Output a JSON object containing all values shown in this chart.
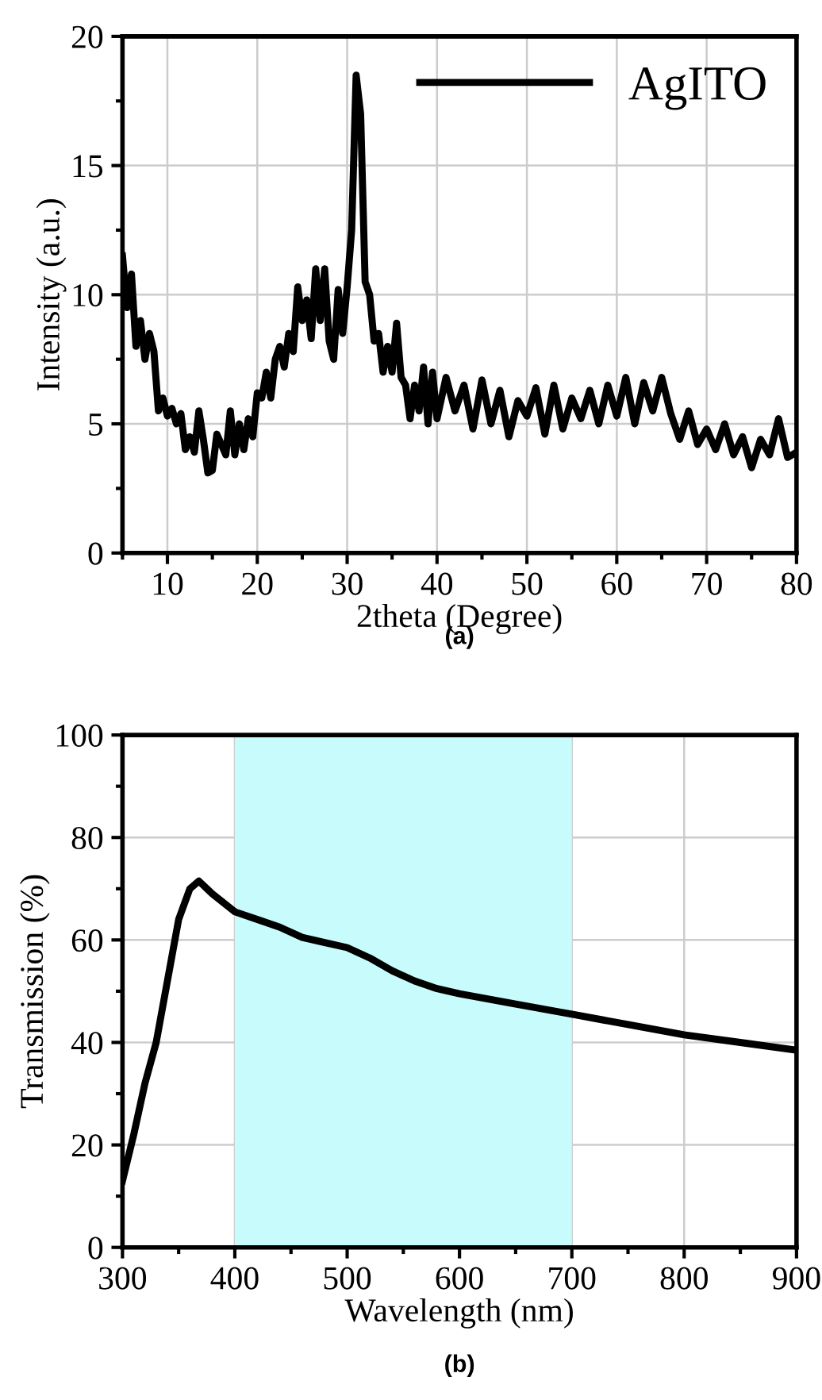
{
  "chart_data": [
    {
      "type": "line",
      "xlabel": "2theta (Degree)",
      "ylabel": "Intensity (a.u.)",
      "annotations": [
        "(a)"
      ],
      "xlim": [
        5,
        80
      ],
      "ylim": [
        0,
        20
      ],
      "xticks": [
        10,
        20,
        30,
        40,
        50,
        60,
        70,
        80
      ],
      "yticks": [
        0,
        5,
        10,
        15,
        20
      ],
      "grid": true,
      "legend": "top right",
      "series": [
        {
          "name": "AgITO",
          "color": "#000000",
          "x": [
            5,
            5.5,
            6,
            6.5,
            7,
            7.5,
            8,
            8.5,
            9,
            9.5,
            10,
            10.5,
            11,
            11.5,
            12,
            12.5,
            13,
            13.5,
            14,
            14.5,
            15,
            15.5,
            16,
            16.5,
            17,
            17.5,
            18,
            18.5,
            19,
            19.5,
            20,
            20.5,
            21,
            21.5,
            22,
            22.5,
            23,
            23.5,
            24,
            24.5,
            25,
            25.5,
            26,
            26.5,
            27,
            27.5,
            28,
            28.5,
            29,
            29.5,
            30,
            30.5,
            31,
            31.5,
            32,
            32.5,
            33,
            33.5,
            34,
            34.5,
            35,
            35.5,
            36,
            36.5,
            37,
            37.5,
            38,
            38.5,
            39,
            39.5,
            40,
            41,
            42,
            43,
            44,
            45,
            46,
            47,
            48,
            49,
            50,
            51,
            52,
            53,
            54,
            55,
            56,
            57,
            58,
            59,
            60,
            61,
            62,
            63,
            64,
            65,
            66,
            67,
            68,
            69,
            70,
            71,
            72,
            73,
            74,
            75,
            76,
            77,
            78,
            79,
            80
          ],
          "values": [
            11.5,
            9.5,
            10.8,
            8,
            9,
            7.5,
            8.5,
            7.8,
            5.5,
            6,
            5.3,
            5.6,
            5,
            5.4,
            4,
            4.5,
            3.9,
            5.5,
            4.4,
            3.1,
            3.2,
            4.6,
            4.2,
            3.8,
            5.5,
            3.8,
            5,
            4,
            5.2,
            4.5,
            6.2,
            6,
            7,
            6,
            7.5,
            8,
            7.2,
            8.5,
            7.8,
            10.3,
            9,
            9.8,
            8.3,
            11,
            9,
            11,
            8.2,
            7.5,
            10.2,
            8.5,
            10.3,
            12.5,
            18.5,
            17,
            10.5,
            10,
            8.2,
            8.5,
            7,
            8,
            7,
            8.9,
            6.8,
            6.5,
            5.2,
            6.5,
            5.5,
            7.2,
            5,
            7,
            5.2,
            6.8,
            5.5,
            6.5,
            4.8,
            6.7,
            5,
            6.3,
            4.5,
            5.9,
            5.3,
            6.4,
            4.6,
            6.5,
            4.8,
            6,
            5.2,
            6.3,
            5,
            6.5,
            5.3,
            6.8,
            5,
            6.6,
            5.5,
            6.8,
            5.4,
            4.4,
            5.5,
            4.2,
            4.8,
            4,
            5,
            3.8,
            4.5,
            3.3,
            4.4,
            3.8,
            5.2,
            3.7,
            3.9
          ]
        }
      ]
    },
    {
      "type": "line",
      "xlabel": "Wavelength (nm)",
      "ylabel": "Transmission (%)",
      "annotations": [
        "(b)"
      ],
      "xlim": [
        300,
        900
      ],
      "ylim": [
        0,
        100
      ],
      "xticks": [
        300,
        400,
        500,
        600,
        700,
        800,
        900
      ],
      "yticks": [
        0,
        20,
        40,
        60,
        80,
        100
      ],
      "grid": true,
      "bands": [
        {
          "axis": "x",
          "from": 400,
          "to": 700,
          "color": "#c8fcfc"
        }
      ],
      "series": [
        {
          "color": "#000000",
          "x": [
            300,
            310,
            320,
            330,
            340,
            350,
            360,
            368,
            380,
            400,
            420,
            440,
            460,
            480,
            500,
            520,
            540,
            560,
            580,
            600,
            650,
            700,
            750,
            800,
            850,
            900
          ],
          "values": [
            13,
            22,
            32,
            40,
            52,
            64,
            70,
            71.5,
            69,
            65.5,
            64,
            62.5,
            60.5,
            59.5,
            58.5,
            56.5,
            54,
            52,
            50.5,
            49.5,
            47.5,
            45.5,
            43.5,
            41.5,
            40,
            38.5
          ]
        }
      ]
    }
  ]
}
